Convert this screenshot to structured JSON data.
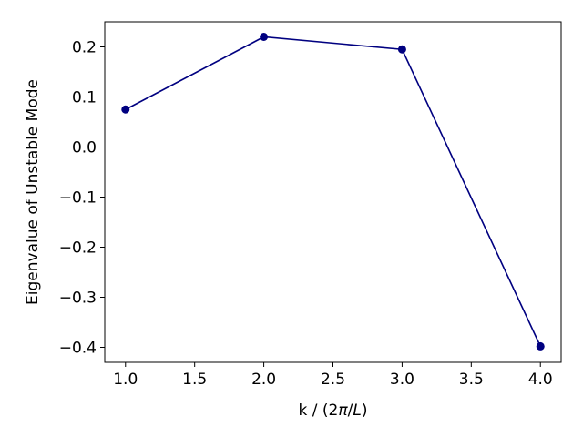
{
  "chart_data": {
    "type": "line",
    "title": "",
    "xlabel": "k / (2π/L)",
    "xlabel_parts": {
      "prefix": "k / (2",
      "pi": "π",
      "slash": "/",
      "L": "L",
      "suffix": ")"
    },
    "ylabel": "Eigenvalue of Unstable Mode",
    "xlim": [
      0.85,
      4.15
    ],
    "ylim": [
      -0.43,
      0.25
    ],
    "xticks": [
      1.0,
      1.5,
      2.0,
      2.5,
      3.0,
      3.5,
      4.0
    ],
    "xtick_labels": [
      "1.0",
      "1.5",
      "2.0",
      "2.5",
      "3.0",
      "3.5",
      "4.0"
    ],
    "yticks": [
      -0.4,
      -0.3,
      -0.2,
      -0.1,
      0.0,
      0.1,
      0.2
    ],
    "ytick_labels": [
      "−0.4",
      "−0.3",
      "−0.2",
      "−0.1",
      "0.0",
      "0.1",
      "0.2"
    ],
    "grid": false,
    "series": [
      {
        "color": "#000080",
        "marker": "circle",
        "x": [
          1.0,
          2.0,
          3.0,
          4.0
        ],
        "y": [
          0.075,
          0.22,
          0.195,
          -0.398
        ]
      }
    ]
  }
}
